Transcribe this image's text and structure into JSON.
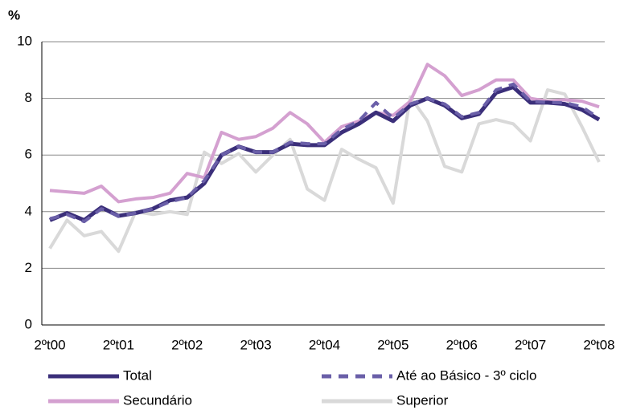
{
  "chart_data": {
    "type": "line",
    "ylabel": "%",
    "categories": [
      "2ºt00",
      null,
      null,
      null,
      "2ºt01",
      null,
      null,
      null,
      "2ºt02",
      null,
      null,
      null,
      "2ºt03",
      null,
      null,
      null,
      "2ºt04",
      null,
      null,
      null,
      "2ºt05",
      null,
      null,
      null,
      "2ºt06",
      null,
      null,
      null,
      "2ºt07",
      null,
      null,
      null,
      "2ºt08"
    ],
    "ylim": [
      0,
      10
    ],
    "yticks": [
      0,
      2,
      4,
      6,
      8,
      10
    ],
    "grid": true,
    "series": [
      {
        "name": "Superior",
        "color": "#d9d9d9",
        "dash": false,
        "values": [
          2.7,
          3.7,
          3.15,
          3.3,
          2.6,
          4.0,
          3.9,
          4.0,
          3.9,
          6.1,
          5.7,
          6.05,
          5.4,
          6.0,
          6.55,
          4.8,
          4.4,
          6.2,
          5.85,
          5.55,
          4.3,
          8.05,
          7.2,
          5.6,
          5.4,
          7.1,
          7.25,
          7.1,
          6.5,
          8.3,
          8.15,
          7.0,
          5.75
        ]
      },
      {
        "name": "Secundário",
        "color": "#d4a0d0",
        "dash": false,
        "values": [
          4.75,
          4.7,
          4.65,
          4.9,
          4.35,
          4.45,
          4.5,
          4.65,
          5.35,
          5.2,
          6.8,
          6.55,
          6.65,
          6.95,
          7.5,
          7.1,
          6.45,
          7.0,
          7.2,
          7.5,
          7.4,
          7.9,
          9.2,
          8.8,
          8.1,
          8.3,
          8.65,
          8.65,
          8.0,
          7.9,
          7.95,
          7.9,
          7.7
        ]
      },
      {
        "name": "Total",
        "color": "#3b2f7a",
        "dash": false,
        "values": [
          3.7,
          3.95,
          3.7,
          4.15,
          3.85,
          3.95,
          4.1,
          4.4,
          4.5,
          5.0,
          6.0,
          6.3,
          6.1,
          6.1,
          6.4,
          6.35,
          6.35,
          6.8,
          7.1,
          7.5,
          7.2,
          7.75,
          8.0,
          7.75,
          7.3,
          7.45,
          8.2,
          8.4,
          7.85,
          7.85,
          7.8,
          7.6,
          7.25
        ]
      },
      {
        "name": "Até ao Básico - 3º ciclo",
        "color": "#6a5fa8",
        "dash": true,
        "values": [
          3.75,
          3.9,
          3.65,
          4.1,
          3.85,
          3.95,
          4.1,
          4.35,
          4.5,
          5.1,
          6.0,
          6.3,
          6.1,
          6.1,
          6.45,
          6.4,
          6.4,
          6.9,
          7.2,
          7.85,
          7.3,
          7.8,
          8.0,
          7.8,
          7.35,
          7.5,
          8.3,
          8.5,
          7.9,
          7.85,
          7.85,
          7.7,
          7.3
        ]
      }
    ]
  }
}
